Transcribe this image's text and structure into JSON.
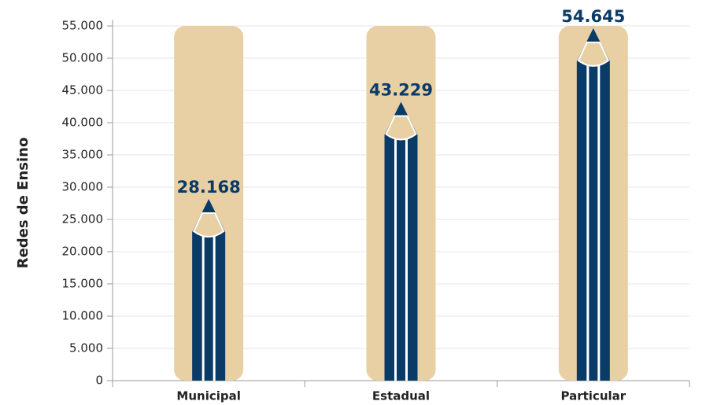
{
  "chart_data": {
    "type": "bar",
    "y_label": "Redes de Ensino",
    "categories": [
      "Municipal",
      "Estadual",
      "Particular"
    ],
    "values": [
      28168,
      43229,
      54645
    ],
    "value_labels": [
      "28.168",
      "43.229",
      "54.645"
    ],
    "color": "#0a3a66",
    "background_color": "#e8d0a4",
    "ylim": [
      0,
      55000
    ],
    "yticks": [
      0,
      {
        "value": 5000,
        "label": "5.000"
      },
      {
        "value": 10000,
        "label": "10.000"
      },
      {
        "value": 15000,
        "label": "15.000"
      },
      {
        "value": 20000,
        "label": "20.000"
      },
      {
        "value": 25000,
        "label": "25.000"
      },
      {
        "value": 30000,
        "label": "30.000"
      },
      {
        "value": 35000,
        "label": "35.000"
      },
      {
        "value": 40000,
        "label": "40.000"
      },
      {
        "value": 45000,
        "label": "45.000"
      },
      {
        "value": 50000,
        "label": "50.000"
      },
      {
        "value": 55000,
        "label": "55.000"
      }
    ],
    "grid": true
  }
}
